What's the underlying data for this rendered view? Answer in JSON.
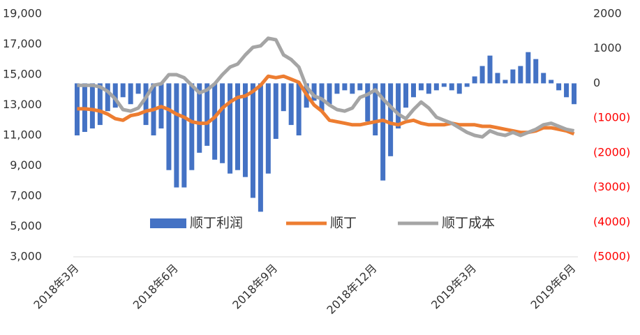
{
  "chart_data": {
    "type": "bar-line",
    "categories": [
      "2018年3月",
      null,
      null,
      null,
      null,
      null,
      null,
      null,
      null,
      null,
      null,
      null,
      null,
      "2018年6月",
      null,
      null,
      null,
      null,
      null,
      null,
      null,
      null,
      null,
      null,
      null,
      null,
      "2018年9月",
      null,
      null,
      null,
      null,
      null,
      null,
      null,
      null,
      null,
      null,
      null,
      null,
      "2018年12月",
      null,
      null,
      null,
      null,
      null,
      null,
      null,
      null,
      null,
      null,
      null,
      null,
      "2019年3月",
      null,
      null,
      null,
      null,
      null,
      null,
      null,
      null,
      null,
      null,
      null,
      null,
      "2019年6月"
    ],
    "series": [
      {
        "name": "顺丁利润",
        "type": "bar",
        "axis": "y2",
        "color": "#4472c4",
        "values": [
          -1500,
          -1400,
          -1300,
          -1200,
          -800,
          -700,
          -400,
          -600,
          -300,
          -1200,
          -1500,
          -1300,
          -2500,
          -3000,
          -3000,
          -2500,
          -2000,
          -1800,
          -2200,
          -2300,
          -2600,
          -2500,
          -2700,
          -3300,
          -3700,
          -2600,
          -1600,
          -800,
          -1200,
          -1500,
          -700,
          -500,
          -800,
          -600,
          -300,
          -200,
          -300,
          -200,
          -1100,
          -1500,
          -2800,
          -2100,
          -1300,
          -700,
          -400,
          -200,
          -300,
          -200,
          -100,
          -200,
          -300,
          -100,
          200,
          500,
          800,
          300,
          100,
          400,
          500,
          900,
          700,
          300,
          100,
          -200,
          -400,
          -600
        ]
      },
      {
        "name": "顺丁",
        "type": "line",
        "color": "#ed7d31",
        "values": [
          12750,
          12750,
          12700,
          12600,
          12400,
          12100,
          12000,
          12300,
          12400,
          12600,
          12700,
          12900,
          12700,
          12400,
          12200,
          11900,
          11800,
          11800,
          12200,
          12800,
          13200,
          13500,
          13600,
          13900,
          14300,
          14900,
          14800,
          14900,
          14700,
          14500,
          13700,
          13000,
          12600,
          12000,
          11900,
          11800,
          11700,
          11700,
          11800,
          11900,
          12000,
          11800,
          11700,
          11900,
          12000,
          11800,
          11700,
          11700,
          11700,
          11800,
          11700,
          11700,
          11700,
          11600,
          11600,
          11500,
          11400,
          11300,
          11200,
          11200,
          11300,
          11500,
          11500,
          11400,
          11300,
          11100
        ]
      },
      {
        "name": "顺丁成本",
        "type": "line",
        "color": "#a5a5a5",
        "values": [
          14300,
          14300,
          14300,
          14200,
          13900,
          13400,
          12700,
          12600,
          12800,
          13500,
          14300,
          14400,
          15000,
          15000,
          14800,
          14300,
          13800,
          14000,
          14400,
          15000,
          15500,
          15700,
          16300,
          16800,
          16900,
          17400,
          17300,
          16300,
          16000,
          15500,
          14200,
          13600,
          13400,
          13000,
          12700,
          12600,
          12800,
          13500,
          13700,
          14000,
          13400,
          12900,
          12400,
          12100,
          12700,
          13200,
          12800,
          12200,
          12000,
          11800,
          11500,
          11200,
          11000,
          10900,
          11300,
          11100,
          11000,
          11200,
          11000,
          11200,
          11400,
          11700,
          11800,
          11600,
          11400,
          11300
        ]
      }
    ],
    "ylim": [
      3000,
      19000
    ],
    "yticks": [
      {
        "value": 3000,
        "label": "3,000"
      },
      {
        "value": 5000,
        "label": "5,000"
      },
      {
        "value": 7000,
        "label": "7,000"
      },
      {
        "value": 9000,
        "label": "9,000"
      },
      {
        "value": 11000,
        "label": "11,000"
      },
      {
        "value": 13000,
        "label": "13,000"
      },
      {
        "value": 15000,
        "label": "15,000"
      },
      {
        "value": 17000,
        "label": "17,000"
      },
      {
        "value": 19000,
        "label": "19,000"
      }
    ],
    "y2lim": [
      -5000,
      2000
    ],
    "y2ticks": [
      {
        "value": -5000,
        "label": "(5000)"
      },
      {
        "value": -4000,
        "label": "(4000)"
      },
      {
        "value": -3000,
        "label": "(3000)"
      },
      {
        "value": -2000,
        "label": "(2000)"
      },
      {
        "value": -1000,
        "label": "(1000)"
      },
      0,
      1000,
      2000
    ],
    "y2_negative_color": "#ff0000",
    "legend": "bottom-inside"
  }
}
